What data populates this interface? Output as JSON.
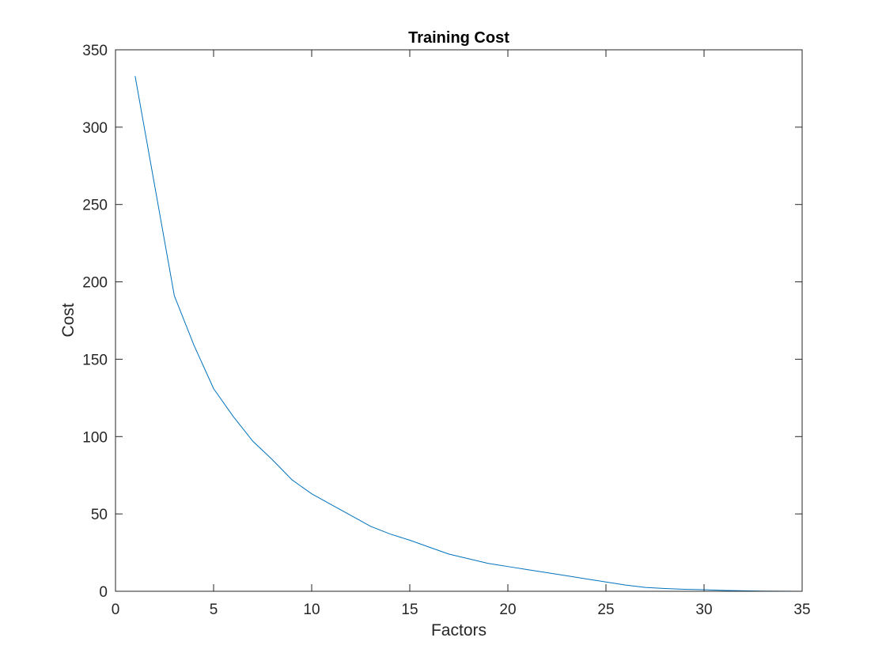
{
  "chart_data": {
    "type": "line",
    "title": "Training Cost",
    "xlabel": "Factors",
    "ylabel": "Cost",
    "xlim": [
      0,
      35
    ],
    "ylim": [
      0,
      350
    ],
    "xticks": [
      0,
      5,
      10,
      15,
      20,
      25,
      30,
      35
    ],
    "yticks": [
      0,
      50,
      100,
      150,
      200,
      250,
      300,
      350
    ],
    "grid": false,
    "legend": "none",
    "series": [
      {
        "color": "#0072BD",
        "x": [
          1,
          2,
          3,
          4,
          5,
          6,
          7,
          8,
          9,
          10,
          11,
          12,
          13,
          14,
          15,
          16,
          17,
          18,
          19,
          20,
          21,
          22,
          23,
          24,
          25,
          26,
          27,
          28,
          29,
          30,
          31,
          32,
          33,
          34,
          35
        ],
        "y": [
          333,
          262,
          191,
          159,
          131,
          113,
          97,
          85,
          72,
          63,
          56,
          49,
          42,
          37,
          33,
          28.5,
          24,
          21,
          18,
          16,
          14,
          12,
          10,
          8,
          6,
          4,
          2.5,
          1.8,
          1.3,
          1.0,
          0.6,
          0.3,
          0.1,
          0.05,
          0
        ]
      },
      {
        "color": "#A2142F",
        "x": [
          1,
          35
        ],
        "y": [
          0,
          0
        ]
      }
    ]
  }
}
